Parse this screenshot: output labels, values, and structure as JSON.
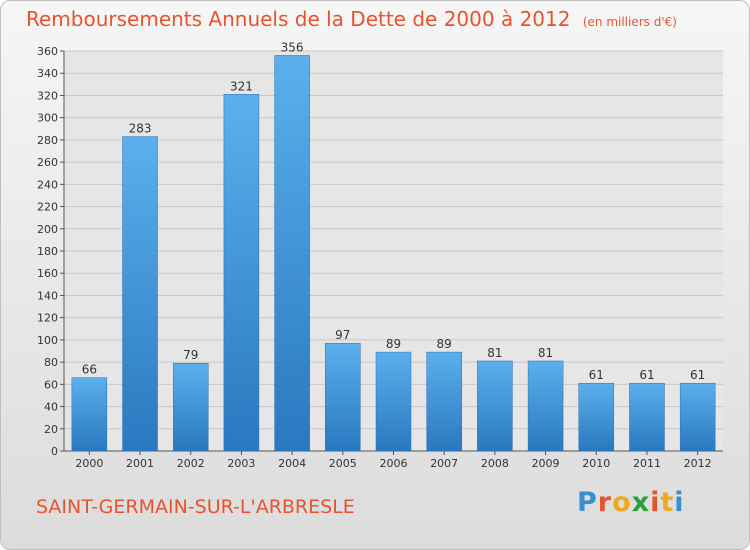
{
  "chart_data": {
    "type": "bar",
    "title": "Remboursements Annuels de la Dette de 2000 à 2012",
    "subtitle": "(en milliers d'€)",
    "categories": [
      "2000",
      "2001",
      "2002",
      "2003",
      "2004",
      "2005",
      "2006",
      "2007",
      "2008",
      "2009",
      "2010",
      "2011",
      "2012"
    ],
    "values": [
      66,
      283,
      79,
      321,
      356,
      97,
      89,
      89,
      81,
      81,
      61,
      61,
      61
    ],
    "ylim": [
      0,
      360
    ],
    "yticks": [
      0,
      20,
      40,
      60,
      80,
      100,
      120,
      140,
      160,
      180,
      200,
      220,
      240,
      260,
      280,
      300,
      320,
      340,
      360
    ],
    "grid": true,
    "bar_color": "#3d8fd6"
  },
  "commune": "SAINT-GERMAIN-SUR-L'ARBRESLE",
  "logo": {
    "letters": [
      "P",
      "r",
      "o",
      "x",
      "i",
      "t",
      "i"
    ],
    "colors": [
      "#3a8fd0",
      "#e8532d",
      "#f0a81e",
      "#2d9e3a",
      "#e8532d",
      "#f0a81e",
      "#3a8fd0"
    ]
  }
}
